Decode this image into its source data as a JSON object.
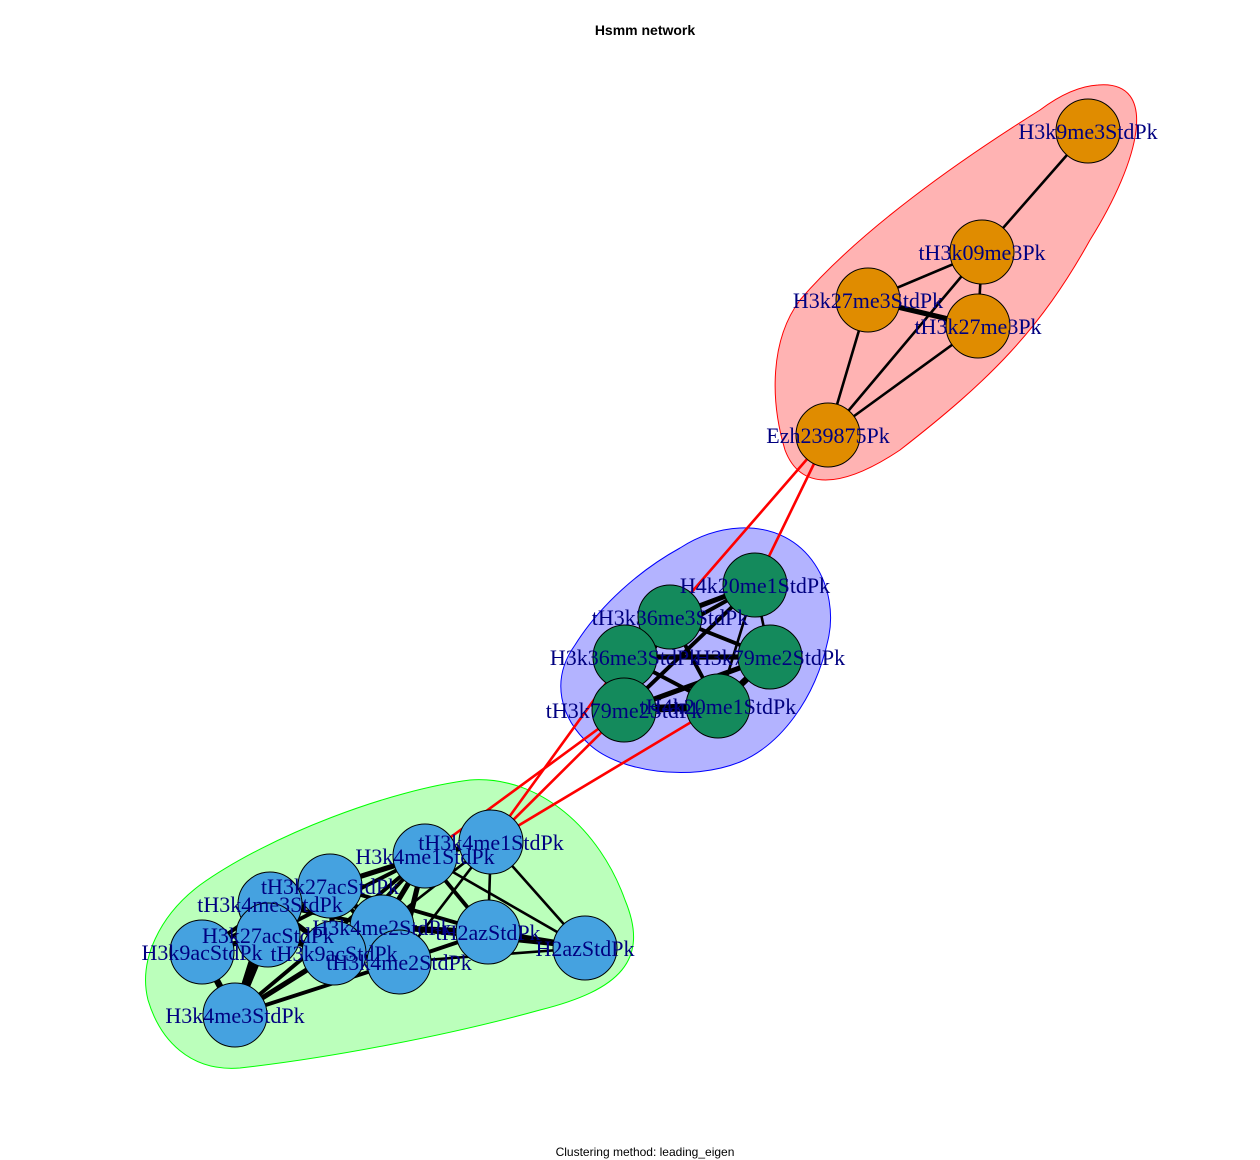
{
  "title": "Hsmm network",
  "caption": "Clustering method: leading_eigen",
  "colors": {
    "edge_within": "#000000",
    "edge_between": "#ff0000",
    "label": "#000080",
    "node_outline": "#000000"
  },
  "clusters": [
    {
      "name": "red",
      "fill": "#ffb3b3",
      "stroke": "#ff0000",
      "node_color": "#e08c00",
      "nodes": [
        "H3k9me3StdPk",
        "tH3k09me3Pk",
        "H3k27me3StdPk",
        "tH3k27me3Pk",
        "Ezh239875Pk"
      ]
    },
    {
      "name": "blue",
      "fill": "#b3b3ff",
      "stroke": "#0000ff",
      "node_color": "#148a5c",
      "nodes": [
        "H4k20me1StdPk",
        "tH3k36me3StdPk",
        "H3k36me3StdPk",
        "H3k79me2StdPk",
        "tH3k79me2StdPk",
        "tH4k20me1StdPk"
      ]
    },
    {
      "name": "green",
      "fill": "#bbffbb",
      "stroke": "#00ff00",
      "node_color": "#45a2e0",
      "nodes": [
        "tH3k4me1StdPk",
        "H3k4me1StdPk",
        "tH3k27acStdPk",
        "tH3k4me3StdPk",
        "H3k27acStdPk",
        "H3k4me2StdPk",
        "tH2azStdPk",
        "H2azStdPk",
        "H3k9acStdPk",
        "tH3k9acStdPk",
        "tH3k4me2StdPk",
        "H3k4me3StdPk"
      ]
    }
  ],
  "edges": [
    {
      "source": "H3k9me3StdPk",
      "target": "tH3k09me3Pk",
      "weight": 2
    },
    {
      "source": "tH3k09me3Pk",
      "target": "H3k27me3StdPk",
      "weight": 2
    },
    {
      "source": "tH3k09me3Pk",
      "target": "tH3k27me3Pk",
      "weight": 2
    },
    {
      "source": "H3k27me3StdPk",
      "target": "tH3k27me3Pk",
      "weight": 4
    },
    {
      "source": "H3k27me3StdPk",
      "target": "Ezh239875Pk",
      "weight": 2
    },
    {
      "source": "tH3k27me3Pk",
      "target": "Ezh239875Pk",
      "weight": 2
    },
    {
      "source": "tH3k09me3Pk",
      "target": "Ezh239875Pk",
      "weight": 2
    },
    {
      "source": "Ezh239875Pk",
      "target": "H4k20me1StdPk",
      "weight": 2,
      "between": true
    },
    {
      "source": "Ezh239875Pk",
      "target": "tH3k36me3StdPk",
      "weight": 2,
      "between": true
    },
    {
      "source": "H4k20me1StdPk",
      "target": "tH3k36me3StdPk",
      "weight": 4
    },
    {
      "source": "H4k20me1StdPk",
      "target": "H3k36me3StdPk",
      "weight": 3
    },
    {
      "source": "H4k20me1StdPk",
      "target": "H3k79me2StdPk",
      "weight": 2
    },
    {
      "source": "H4k20me1StdPk",
      "target": "tH3k79me2StdPk",
      "weight": 3
    },
    {
      "source": "H4k20me1StdPk",
      "target": "tH4k20me1StdPk",
      "weight": 2
    },
    {
      "source": "tH3k36me3StdPk",
      "target": "H3k36me3StdPk",
      "weight": 5
    },
    {
      "source": "tH3k36me3StdPk",
      "target": "H3k79me2StdPk",
      "weight": 3
    },
    {
      "source": "tH3k36me3StdPk",
      "target": "tH3k79me2StdPk",
      "weight": 3
    },
    {
      "source": "tH3k36me3StdPk",
      "target": "tH4k20me1StdPk",
      "weight": 3
    },
    {
      "source": "H3k36me3StdPk",
      "target": "H3k79me2StdPk",
      "weight": 4
    },
    {
      "source": "H3k36me3StdPk",
      "target": "tH3k79me2StdPk",
      "weight": 4
    },
    {
      "source": "H3k36me3StdPk",
      "target": "tH4k20me1StdPk",
      "weight": 3
    },
    {
      "source": "H3k79me2StdPk",
      "target": "tH3k79me2StdPk",
      "weight": 4
    },
    {
      "source": "H3k79me2StdPk",
      "target": "tH4k20me1StdPk",
      "weight": 5
    },
    {
      "source": "tH3k79me2StdPk",
      "target": "tH4k20me1StdPk",
      "weight": 6
    },
    {
      "source": "tH3k79me2StdPk",
      "target": "tH3k4me1StdPk",
      "weight": 2,
      "between": true
    },
    {
      "source": "tH3k79me2StdPk",
      "target": "H3k4me1StdPk",
      "weight": 2,
      "between": true
    },
    {
      "source": "H3k36me3StdPk",
      "target": "tH3k4me1StdPk",
      "weight": 2,
      "between": true
    },
    {
      "source": "tH4k20me1StdPk",
      "target": "tH3k4me1StdPk",
      "weight": 2,
      "between": true
    },
    {
      "source": "tH3k4me1StdPk",
      "target": "H3k4me1StdPk",
      "weight": 4
    },
    {
      "source": "tH3k4me1StdPk",
      "target": "H3k4me2StdPk",
      "weight": 2
    },
    {
      "source": "tH3k4me1StdPk",
      "target": "tH2azStdPk",
      "weight": 2
    },
    {
      "source": "tH3k4me1StdPk",
      "target": "H2azStdPk",
      "weight": 2
    },
    {
      "source": "tH3k4me1StdPk",
      "target": "tH3k4me2StdPk",
      "weight": 2
    },
    {
      "source": "H3k4me1StdPk",
      "target": "tH3k27acStdPk",
      "weight": 4
    },
    {
      "source": "H3k4me1StdPk",
      "target": "tH3k4me3StdPk",
      "weight": 3
    },
    {
      "source": "H3k4me1StdPk",
      "target": "H3k27acStdPk",
      "weight": 3
    },
    {
      "source": "H3k4me1StdPk",
      "target": "H3k4me2StdPk",
      "weight": 4
    },
    {
      "source": "H3k4me1StdPk",
      "target": "tH2azStdPk",
      "weight": 3
    },
    {
      "source": "H3k4me1StdPk",
      "target": "H2azStdPk",
      "weight": 2
    },
    {
      "source": "H3k4me1StdPk",
      "target": "tH3k9acStdPk",
      "weight": 3
    },
    {
      "source": "H3k4me1StdPk",
      "target": "tH3k4me2StdPk",
      "weight": 4
    },
    {
      "source": "H3k4me1StdPk",
      "target": "H3k4me3StdPk",
      "weight": 3
    },
    {
      "source": "tH3k27acStdPk",
      "target": "tH3k4me3StdPk",
      "weight": 5
    },
    {
      "source": "tH3k27acStdPk",
      "target": "H3k27acStdPk",
      "weight": 4
    },
    {
      "source": "tH3k27acStdPk",
      "target": "H3k4me2StdPk",
      "weight": 4
    },
    {
      "source": "tH3k27acStdPk",
      "target": "tH2azStdPk",
      "weight": 3
    },
    {
      "source": "tH3k27acStdPk",
      "target": "tH3k4me2StdPk",
      "weight": 3
    },
    {
      "source": "tH3k27acStdPk",
      "target": "H3k9acStdPk",
      "weight": 3
    },
    {
      "source": "tH3k27acStdPk",
      "target": "tH3k9acStdPk",
      "weight": 4
    },
    {
      "source": "tH3k4me3StdPk",
      "target": "H3k9acStdPk",
      "weight": 3
    },
    {
      "source": "tH3k4me3StdPk",
      "target": "H3k4me3StdPk",
      "weight": 5
    },
    {
      "source": "tH3k4me3StdPk",
      "target": "tH3k9acStdPk",
      "weight": 4
    },
    {
      "source": "tH3k4me3StdPk",
      "target": "H3k4me2StdPk",
      "weight": 3
    },
    {
      "source": "H3k27acStdPk",
      "target": "H3k9acStdPk",
      "weight": 4
    },
    {
      "source": "H3k27acStdPk",
      "target": "tH3k9acStdPk",
      "weight": 4
    },
    {
      "source": "H3k27acStdPk",
      "target": "H3k4me3StdPk",
      "weight": 5
    },
    {
      "source": "H3k27acStdPk",
      "target": "tH3k4me2StdPk",
      "weight": 3
    },
    {
      "source": "H3k9acStdPk",
      "target": "H3k4me3StdPk",
      "weight": 5
    },
    {
      "source": "tH3k9acStdPk",
      "target": "H3k4me3StdPk",
      "weight": 4
    },
    {
      "source": "tH3k9acStdPk",
      "target": "tH3k4me2StdPk",
      "weight": 4
    },
    {
      "source": "H3k4me2StdPk",
      "target": "tH3k4me2StdPk",
      "weight": 5
    },
    {
      "source": "H3k4me2StdPk",
      "target": "tH2azStdPk",
      "weight": 4
    },
    {
      "source": "H3k4me2StdPk",
      "target": "H2azStdPk",
      "weight": 2
    },
    {
      "source": "H3k4me2StdPk",
      "target": "tH3k9acStdPk",
      "weight": 3
    },
    {
      "source": "tH2azStdPk",
      "target": "H2azStdPk",
      "weight": 5
    },
    {
      "source": "tH2azStdPk",
      "target": "tH3k4me2StdPk",
      "weight": 3
    },
    {
      "source": "H2azStdPk",
      "target": "tH3k4me2StdPk",
      "weight": 2
    },
    {
      "source": "tH3k4me2StdPk",
      "target": "H3k4me3StdPk",
      "weight": 3
    }
  ]
}
